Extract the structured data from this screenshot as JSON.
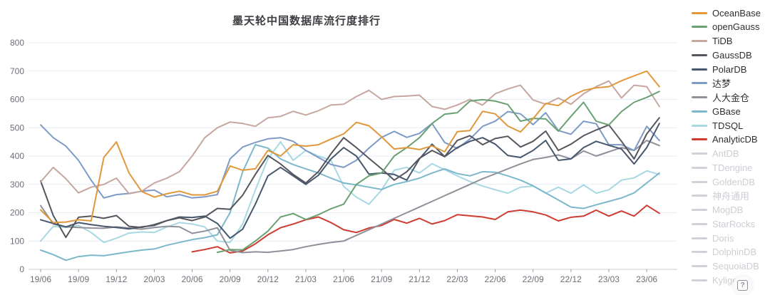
{
  "page": {
    "background": "#ffffff"
  },
  "help": {
    "glyph": "?"
  },
  "axis_style": {
    "label_color": "#6e6e78",
    "grid_color": "#e4ebf3",
    "axis_line_color": "#c9ccd2",
    "tick_color": "#9b9ba5"
  },
  "chart_data": {
    "type": "line",
    "title": "墨天轮中国数据库流行度排行",
    "xlabel": "",
    "ylabel": "",
    "ylim": [
      0,
      800
    ],
    "ytick_step": 100,
    "grid": true,
    "legend_position": "right",
    "x": [
      "19/06",
      "19/07",
      "19/08",
      "19/09",
      "19/10",
      "19/11",
      "19/12",
      "20/01",
      "20/02",
      "20/03",
      "20/04",
      "20/05",
      "20/06",
      "20/07",
      "20/08",
      "20/09",
      "20/10",
      "20/11",
      "20/12",
      "21/01",
      "21/02",
      "21/03",
      "21/04",
      "21/05",
      "21/06",
      "21/07",
      "21/08",
      "21/09",
      "21/10",
      "21/11",
      "21/12",
      "22/01",
      "22/02",
      "22/03",
      "22/04",
      "22/05",
      "22/06",
      "22/07",
      "22/08",
      "22/09",
      "22/10",
      "22/11",
      "22/12",
      "23/01",
      "23/02",
      "23/03",
      "23/04",
      "23/05",
      "23/06",
      "23/07"
    ],
    "x_axis_tick_every": 3,
    "series": [
      {
        "name": "OceanBase",
        "slug": "oceanbase",
        "color": "#e0983a",
        "values": [
          210,
          165,
          167,
          175,
          171,
          395,
          450,
          340,
          275,
          255,
          267,
          276,
          263,
          263,
          276,
          365,
          350,
          355,
          420,
          400,
          440,
          435,
          440,
          460,
          478,
          519,
          507,
          468,
          425,
          430,
          423,
          436,
          415,
          486,
          490,
          558,
          549,
          506,
          485,
          532,
          586,
          578,
          611,
          632,
          641,
          645,
          666,
          683,
          700,
          645
        ]
      },
      {
        "name": "openGauss",
        "slug": "opengauss",
        "color": "#6aa173",
        "values": [
          null,
          null,
          null,
          null,
          null,
          null,
          null,
          null,
          null,
          null,
          null,
          null,
          null,
          null,
          60,
          70,
          69,
          100,
          135,
          185,
          197,
          176,
          193,
          214,
          230,
          300,
          330,
          340,
          400,
          430,
          465,
          515,
          548,
          553,
          594,
          599,
          594,
          582,
          523,
          533,
          531,
          488,
          540,
          590,
          523,
          510,
          557,
          590,
          607,
          628
        ]
      },
      {
        "name": "TiDB",
        "slug": "tidb",
        "color": "#c7a6a0",
        "values": [
          309,
          360,
          320,
          270,
          290,
          300,
          322,
          267,
          276,
          305,
          322,
          345,
          400,
          465,
          500,
          520,
          515,
          505,
          535,
          540,
          558,
          545,
          560,
          580,
          583,
          610,
          632,
          600,
          610,
          612,
          615,
          575,
          565,
          580,
          600,
          580,
          620,
          637,
          650,
          598,
          583,
          605,
          583,
          620,
          645,
          665,
          605,
          650,
          645,
          575
        ]
      },
      {
        "name": "GaussDB",
        "slug": "gaussdb",
        "color": "#55555e",
        "values": [
          312,
          190,
          113,
          184,
          188,
          180,
          190,
          152,
          148,
          158,
          172,
          182,
          172,
          185,
          215,
          212,
          262,
          335,
          402,
          372,
          335,
          305,
          345,
          408,
          465,
          430,
          392,
          355,
          315,
          345,
          392,
          420,
          398,
          455,
          472,
          440,
          462,
          470,
          432,
          452,
          488,
          420,
          442,
          472,
          492,
          510,
          452,
          390,
          478,
          535
        ]
      },
      {
        "name": "PolarDB",
        "slug": "polardb",
        "color": "#47586d",
        "values": [
          175,
          162,
          150,
          165,
          158,
          152,
          148,
          143,
          150,
          155,
          172,
          185,
          183,
          188,
          162,
          110,
          142,
          230,
          330,
          360,
          330,
          300,
          332,
          390,
          430,
          400,
          336,
          340,
          335,
          315,
          390,
          442,
          398,
          430,
          452,
          465,
          442,
          402,
          395,
          420,
          455,
          385,
          390,
          430,
          452,
          438,
          425,
          372,
          430,
          515
        ]
      },
      {
        "name": "达梦",
        "slug": "dameng",
        "color": "#7e9ac6",
        "values": [
          510,
          465,
          435,
          385,
          315,
          252,
          264,
          268,
          276,
          280,
          256,
          264,
          252,
          256,
          264,
          390,
          432,
          448,
          461,
          465,
          452,
          420,
          395,
          370,
          360,
          385,
          428,
          466,
          487,
          466,
          480,
          515,
          448,
          427,
          460,
          505,
          523,
          557,
          549,
          511,
          553,
          490,
          477,
          523,
          514,
          440,
          440,
          420,
          505,
          455
        ]
      },
      {
        "name": "人大金仓",
        "slug": "kingbase",
        "color": "#90909a",
        "values": [
          225,
          160,
          150,
          148,
          146,
          145,
          150,
          146,
          142,
          148,
          152,
          150,
          127,
          135,
          147,
          67,
          59,
          62,
          60,
          65,
          70,
          80,
          88,
          95,
          100,
          120,
          140,
          160,
          180,
          200,
          220,
          240,
          260,
          280,
          300,
          320,
          337,
          355,
          372,
          388,
          395,
          404,
          390,
          418,
          400,
          415,
          430,
          420,
          455,
          437
        ]
      },
      {
        "name": "GBase",
        "slug": "gbase",
        "color": "#7cb8cc",
        "values": [
          68,
          52,
          32,
          45,
          50,
          48,
          55,
          62,
          68,
          72,
          85,
          95,
          105,
          112,
          122,
          200,
          345,
          440,
          428,
          390,
          370,
          355,
          340,
          322,
          305,
          298,
          290,
          282,
          300,
          310,
          322,
          340,
          355,
          338,
          330,
          345,
          343,
          330,
          315,
          295,
          270,
          245,
          220,
          215,
          228,
          240,
          252,
          270,
          305,
          340
        ]
      },
      {
        "name": "TDSQL",
        "slug": "tdsql",
        "color": "#a8d8e2",
        "values": [
          100,
          152,
          148,
          155,
          130,
          95,
          110,
          128,
          132,
          130,
          150,
          165,
          160,
          150,
          100,
          95,
          160,
          280,
          390,
          450,
          385,
          420,
          400,
          385,
          293,
          255,
          230,
          280,
          350,
          360,
          340,
          373,
          352,
          330,
          310,
          294,
          281,
          269,
          290,
          294,
          269,
          290,
          269,
          298,
          269,
          281,
          315,
          323,
          348,
          335
        ]
      },
      {
        "name": "AnalyticDB",
        "slug": "analyticdb",
        "color": "#cf3b30",
        "values": [
          null,
          null,
          null,
          null,
          null,
          null,
          null,
          null,
          null,
          null,
          null,
          null,
          62,
          70,
          80,
          58,
          65,
          90,
          122,
          147,
          160,
          175,
          185,
          165,
          140,
          130,
          146,
          155,
          176,
          163,
          180,
          160,
          172,
          193,
          189,
          185,
          176,
          203,
          209,
          203,
          192,
          171,
          184,
          188,
          209,
          188,
          206,
          188,
          226,
          198
        ]
      }
    ]
  },
  "legend": {
    "items": [
      {
        "label": "OceanBase",
        "slug": "oceanbase",
        "color": "#e0983a",
        "active": true
      },
      {
        "label": "openGauss",
        "slug": "opengauss",
        "color": "#6aa173",
        "active": true
      },
      {
        "label": "TiDB",
        "slug": "tidb",
        "color": "#c7a6a0",
        "active": true
      },
      {
        "label": "GaussDB",
        "slug": "gaussdb",
        "color": "#55555e",
        "active": true
      },
      {
        "label": "PolarDB",
        "slug": "polardb",
        "color": "#47586d",
        "active": true
      },
      {
        "label": "达梦",
        "slug": "dameng",
        "color": "#7e9ac6",
        "active": true
      },
      {
        "label": "人大金仓",
        "slug": "kingbase",
        "color": "#90909a",
        "active": true
      },
      {
        "label": "GBase",
        "slug": "gbase",
        "color": "#7cb8cc",
        "active": true
      },
      {
        "label": "TDSQL",
        "slug": "tdsql",
        "color": "#a8d8e2",
        "active": true
      },
      {
        "label": "AnalyticDB",
        "slug": "analyticdb",
        "color": "#cf3b30",
        "active": true
      },
      {
        "label": "AntDB",
        "slug": "antdb",
        "color": "#cfd2d6",
        "active": false
      },
      {
        "label": "TDengine",
        "slug": "tdengine",
        "color": "#cfd2d6",
        "active": false
      },
      {
        "label": "GoldenDB",
        "slug": "goldendb",
        "color": "#cfd2d6",
        "active": false
      },
      {
        "label": "神舟通用",
        "slug": "shenzhou-tongyong",
        "color": "#cfd2d6",
        "active": false
      },
      {
        "label": "MogDB",
        "slug": "mogdb",
        "color": "#cfd2d6",
        "active": false
      },
      {
        "label": "StarRocks",
        "slug": "starrocks",
        "color": "#cfd2d6",
        "active": false
      },
      {
        "label": "Doris",
        "slug": "doris",
        "color": "#cfd2d6",
        "active": false
      },
      {
        "label": "DolphinDB",
        "slug": "dolphindb",
        "color": "#cfd2d6",
        "active": false
      },
      {
        "label": "SequoiaDB",
        "slug": "sequoiadb",
        "color": "#cfd2d6",
        "active": false
      },
      {
        "label": "Kylige",
        "slug": "kyligence",
        "color": "#cfd2d6",
        "active": false
      }
    ]
  }
}
